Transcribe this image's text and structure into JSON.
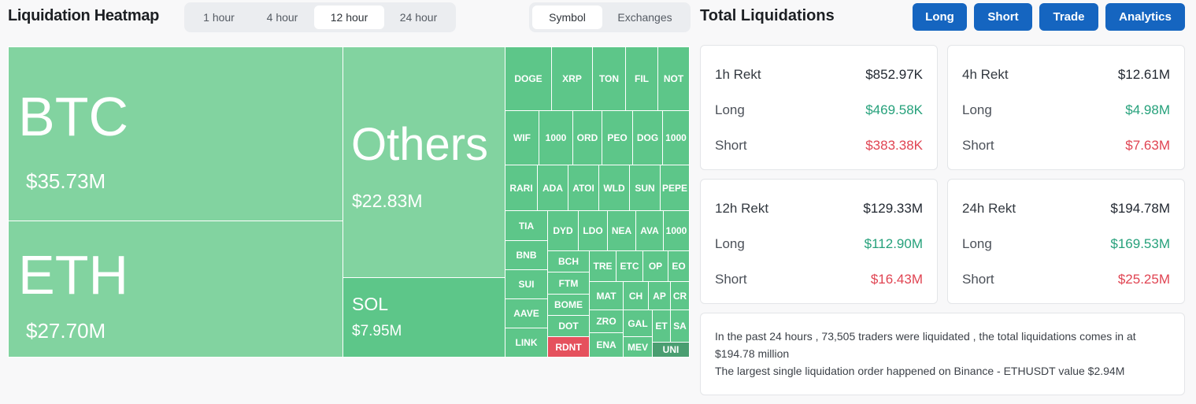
{
  "heatmap": {
    "title": "Liquidation Heatmap",
    "periods": [
      "1 hour",
      "4 hour",
      "12 hour",
      "24 hour"
    ],
    "active_period": "12 hour",
    "views": [
      "Symbol",
      "Exchanges"
    ],
    "active_view": "Symbol",
    "big": [
      {
        "symbol": "BTC",
        "amount": "$35.73M"
      },
      {
        "symbol": "ETH",
        "amount": "$27.70M"
      },
      {
        "symbol": "Others",
        "amount": "$22.83M"
      },
      {
        "symbol": "SOL",
        "amount": "$7.95M"
      }
    ],
    "small": [
      "DOGE",
      "XRP",
      "TON",
      "FIL",
      "NOT",
      "WIF",
      "1000",
      "ORD",
      "PEO",
      "DOG",
      "1000",
      "RARI",
      "ADA",
      "ATOI",
      "WLD",
      "SUN",
      "PEPE",
      "TIA",
      "DYD",
      "LDO",
      "NEA",
      "AVA",
      "1000",
      "BNB",
      "BCH",
      "TRE",
      "ETC",
      "OP",
      "EO",
      "SUI",
      "FTM",
      "MAT",
      "CH",
      "AP",
      "CR",
      "AAVE",
      "BOME",
      "ZRO",
      "GAL",
      "ET",
      "SA",
      "DOT",
      "LINK",
      "RDNT",
      "ENA",
      "MEV",
      "UNI"
    ],
    "colors": {
      "light_green": "#82d3a0",
      "green": "#5dc689",
      "dark_green": "#4a9e71",
      "red": "#e5515d"
    }
  },
  "total": {
    "title": "Total Liquidations",
    "buttons": [
      "Long",
      "Short",
      "Trade",
      "Analytics"
    ],
    "cards": [
      {
        "period": "1h Rekt",
        "total": "$852.97K",
        "long_label": "Long",
        "long": "$469.58K",
        "short_label": "Short",
        "short": "$383.38K"
      },
      {
        "period": "4h Rekt",
        "total": "$12.61M",
        "long_label": "Long",
        "long": "$4.98M",
        "short_label": "Short",
        "short": "$7.63M"
      },
      {
        "period": "12h Rekt",
        "total": "$129.33M",
        "long_label": "Long",
        "long": "$112.90M",
        "short_label": "Short",
        "short": "$16.43M"
      },
      {
        "period": "24h Rekt",
        "total": "$194.78M",
        "long_label": "Long",
        "long": "$169.53M",
        "short_label": "Short",
        "short": "$25.25M"
      }
    ],
    "summary_line1": "In the past 24 hours , 73,505 traders were liquidated , the total liquidations comes in at $194.78 million",
    "summary_line2": "The largest single liquidation order happened on Binance - ETHUSDT value $2.94M"
  }
}
